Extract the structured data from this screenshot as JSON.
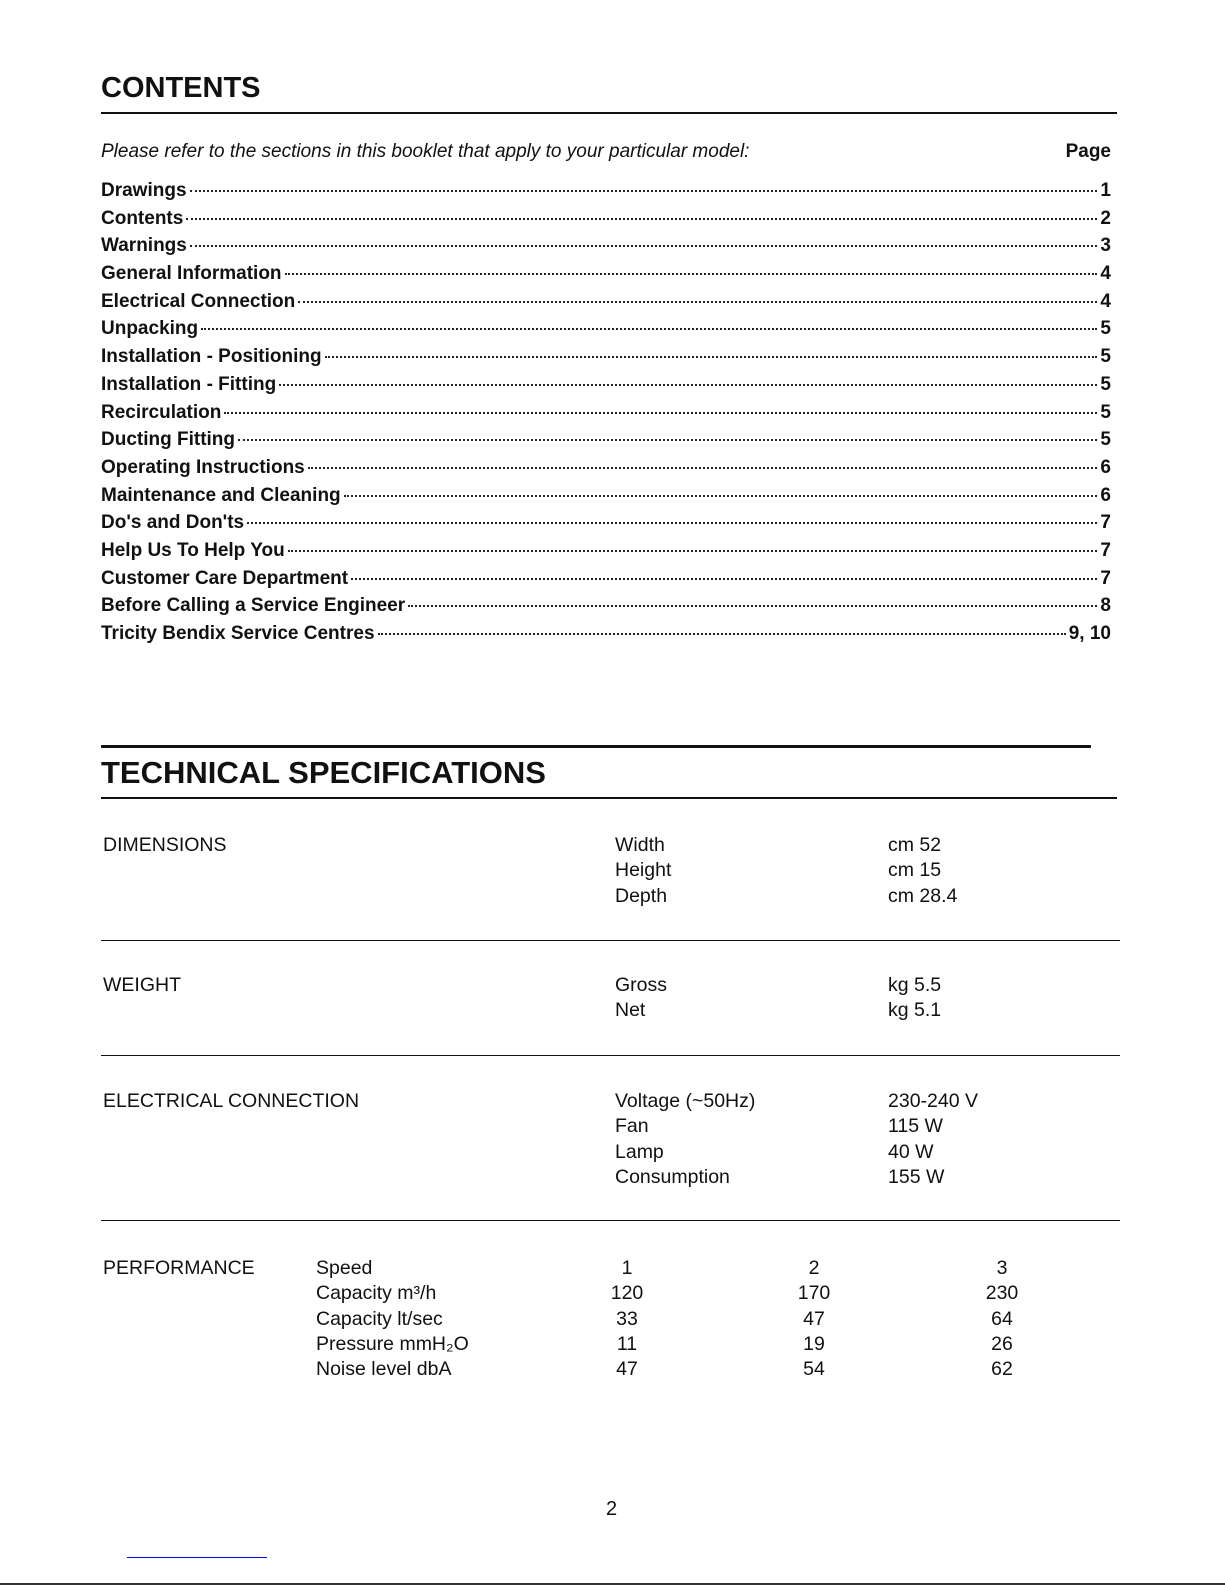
{
  "contents": {
    "title": "CONTENTS",
    "intro": "Please refer to the sections in this booklet that apply to your particular model:",
    "page_header": "Page",
    "entries": [
      {
        "label": "Drawings",
        "page": "1"
      },
      {
        "label": "Contents",
        "page": "2"
      },
      {
        "label": "Warnings",
        "page": "3"
      },
      {
        "label": "General Information",
        "page": "4"
      },
      {
        "label": "Electrical Connection",
        "page": "4"
      },
      {
        "label": "Unpacking",
        "page": "5"
      },
      {
        "label": "Installation - Positioning",
        "page": "5"
      },
      {
        "label": "Installation - Fitting",
        "page": "5"
      },
      {
        "label": "Recirculation",
        "page": "5"
      },
      {
        "label": "Ducting Fitting",
        "page": "5"
      },
      {
        "label": "Operating Instructions",
        "page": "6"
      },
      {
        "label": "Maintenance and Cleaning",
        "page": "6"
      },
      {
        "label": "Do's and Don'ts",
        "page": "7"
      },
      {
        "label": "Help Us To Help You",
        "page": "7"
      },
      {
        "label": "Customer Care Department",
        "page": "7"
      },
      {
        "label": "Before Calling a Service Engineer",
        "page": "8"
      },
      {
        "label": "Tricity Bendix Service Centres",
        "page": "9, 10"
      }
    ]
  },
  "specs": {
    "title": "TECHNICAL SPECIFICATIONS",
    "dimensions": {
      "heading": "DIMENSIONS",
      "rows": [
        {
          "label": "Width",
          "value": "cm 52"
        },
        {
          "label": "Height",
          "value": "cm 15"
        },
        {
          "label": "Depth",
          "value": "cm 28.4"
        }
      ]
    },
    "weight": {
      "heading": "WEIGHT",
      "rows": [
        {
          "label": "Gross",
          "value": "kg 5.5"
        },
        {
          "label": "Net",
          "value": "kg 5.1"
        }
      ]
    },
    "electrical": {
      "heading": "ELECTRICAL CONNECTION",
      "rows": [
        {
          "label": "Voltage (~50Hz)",
          "value": "230-240 V"
        },
        {
          "label": "Fan",
          "value": "115 W"
        },
        {
          "label": "Lamp",
          "value": "40 W"
        },
        {
          "label": "Consumption",
          "value": "155 W"
        }
      ]
    },
    "performance": {
      "heading": "PERFORMANCE",
      "rows": [
        {
          "label": "Speed",
          "values": [
            "1",
            "2",
            "3"
          ]
        },
        {
          "label": "Capacity m³/h",
          "values": [
            "120",
            "170",
            "230"
          ]
        },
        {
          "label": "Capacity lt/sec",
          "values": [
            "33",
            "47",
            "64"
          ]
        },
        {
          "label": "Pressure mmH₂O",
          "values": [
            "11",
            "19",
            "26"
          ]
        },
        {
          "label": "Noise level dbA",
          "values": [
            "47",
            "54",
            "62"
          ]
        }
      ]
    }
  },
  "footer": {
    "page_number": "2"
  }
}
